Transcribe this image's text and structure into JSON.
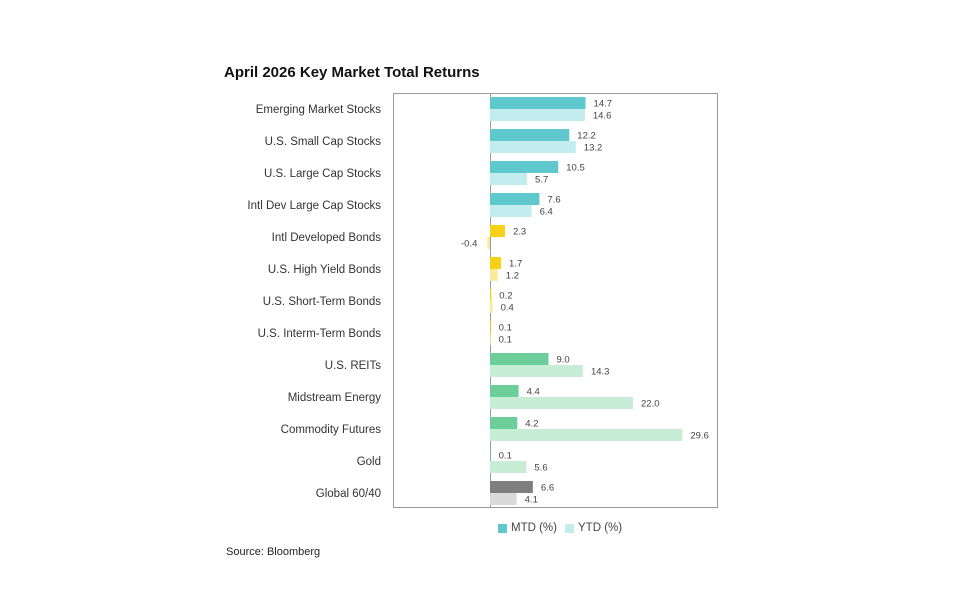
{
  "chart_data": {
    "type": "bar",
    "orientation": "horizontal",
    "title": "April 2026 Key Market Total Returns",
    "categories": [
      "Emerging Market Stocks",
      "U.S. Small Cap Stocks",
      "U.S. Large Cap Stocks",
      "Intl Dev Large Cap Stocks",
      "Intl Developed Bonds",
      "U.S. High Yield Bonds",
      "U.S. Short-Term Bonds",
      "U.S. Interm-Term Bonds",
      "U.S. REITs",
      "Midstream Energy",
      "Commodity Futures",
      "Gold",
      "Global 60/40"
    ],
    "series": [
      {
        "name": "MTD (%)",
        "values": [
          14.7,
          12.2,
          10.5,
          7.6,
          2.3,
          1.7,
          0.2,
          0.1,
          9.0,
          4.4,
          4.2,
          0.1,
          6.6
        ],
        "value_labels": [
          "14.7",
          "12.2",
          "10.5",
          "7.6",
          "2.3",
          "1.7",
          "0.2",
          "0.1",
          "9.0",
          "4.4",
          "4.2",
          "0.1",
          "6.6"
        ]
      },
      {
        "name": "YTD (%)",
        "values": [
          14.6,
          13.2,
          5.7,
          6.4,
          -0.4,
          1.2,
          0.4,
          0.1,
          14.3,
          22.0,
          29.6,
          5.6,
          4.1
        ],
        "value_labels": [
          "14.6",
          "13.2",
          "5.7",
          "6.4",
          "-0.4",
          "1.2",
          "0.4",
          "0.1",
          "14.3",
          "22.0",
          "29.6",
          "5.6",
          "4.1"
        ]
      }
    ],
    "category_colors": {
      "MTD (%)": [
        "#5ec8cd",
        "#5ec8cd",
        "#5ec8cd",
        "#5ec8cd",
        "#f7d117",
        "#f7d117",
        "#f7d117",
        "#f7d117",
        "#6ccf9b",
        "#6ccf9b",
        "#6ccf9b",
        "#6ccf9b",
        "#7f7f7f"
      ],
      "YTD (%)": [
        "#c3ecee",
        "#c3ecee",
        "#c3ecee",
        "#c3ecee",
        "#fbeb98",
        "#fbeb98",
        "#fbeb98",
        "#fbeb98",
        "#c7edd6",
        "#c7edd6",
        "#c7edd6",
        "#c7edd6",
        "#dadada"
      ]
    },
    "legend": [
      {
        "name": "MTD (%)",
        "color": "#5ec8cd"
      },
      {
        "name": "YTD (%)",
        "color": "#c3ecee"
      }
    ],
    "legend_position": "bottom",
    "xlim": [
      -15,
      35
    ],
    "grid": false,
    "source": "Source: Bloomberg"
  }
}
